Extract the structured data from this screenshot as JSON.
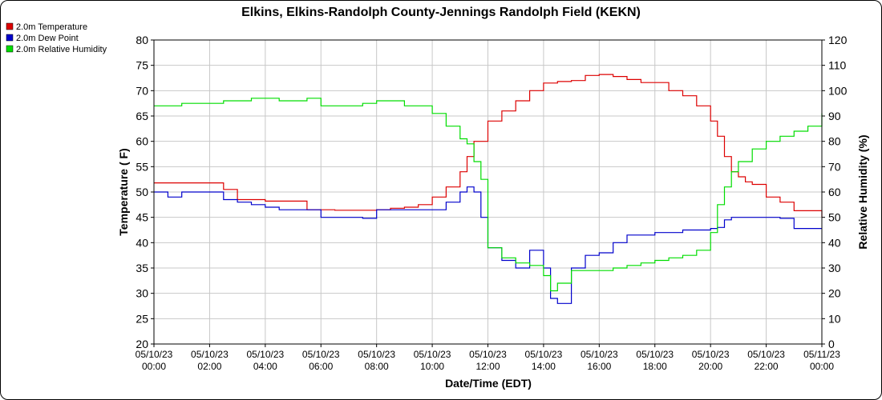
{
  "chart_data": {
    "type": "line",
    "title": "Elkins, Elkins-Randolph County-Jennings Randolph Field (KEKN)",
    "xlabel": "Date/Time (EDT)",
    "ylabel_left": "Temperature ( F)",
    "ylabel_right": "Relative Humidity (%)",
    "ylim_left": [
      20,
      80
    ],
    "ylim_right": [
      0,
      120
    ],
    "xlim_hours": [
      0,
      24
    ],
    "grid": true,
    "legend_position": "top-left",
    "y_ticks_left": [
      "20",
      "25",
      "30",
      "35",
      "40",
      "45",
      "50",
      "55",
      "60",
      "65",
      "70",
      "75",
      "80"
    ],
    "y_ticks_right": [
      "0",
      "10",
      "20",
      "30",
      "40",
      "50",
      "60",
      "70",
      "80",
      "90",
      "100",
      "110",
      "120"
    ],
    "x_ticks": [
      {
        "date": "05/10/23",
        "time": "00:00"
      },
      {
        "date": "05/10/23",
        "time": "02:00"
      },
      {
        "date": "05/10/23",
        "time": "04:00"
      },
      {
        "date": "05/10/23",
        "time": "06:00"
      },
      {
        "date": "05/10/23",
        "time": "08:00"
      },
      {
        "date": "05/10/23",
        "time": "10:00"
      },
      {
        "date": "05/10/23",
        "time": "12:00"
      },
      {
        "date": "05/10/23",
        "time": "14:00"
      },
      {
        "date": "05/10/23",
        "time": "16:00"
      },
      {
        "date": "05/10/23",
        "time": "18:00"
      },
      {
        "date": "05/10/23",
        "time": "20:00"
      },
      {
        "date": "05/10/23",
        "time": "22:00"
      },
      {
        "date": "05/11/23",
        "time": "00:00"
      }
    ],
    "series": [
      {
        "name": "2.0m Temperature",
        "color": "#dd0000",
        "axis": "left",
        "x": [
          0,
          0.5,
          1,
          1.5,
          2,
          2.5,
          3,
          3.5,
          4,
          4.5,
          5,
          5.5,
          6,
          6.5,
          7,
          7.5,
          8,
          8.5,
          9,
          9.5,
          10,
          10.5,
          11,
          11.25,
          11.5,
          12,
          12.5,
          13,
          13.5,
          14,
          14.5,
          15,
          15.5,
          16,
          16.5,
          17,
          17.5,
          18,
          18.5,
          19,
          19.5,
          20,
          20.25,
          20.5,
          20.75,
          21,
          21.25,
          21.5,
          22,
          22.5,
          23,
          23.5,
          24
        ],
        "y": [
          51.8,
          51.8,
          51.8,
          51.8,
          51.8,
          50.5,
          48.5,
          48.5,
          48.2,
          48.2,
          48.2,
          46.5,
          46.5,
          46.4,
          46.4,
          46.4,
          46.5,
          46.8,
          47,
          47.5,
          49,
          51,
          54,
          57,
          60,
          64,
          66,
          68,
          70,
          71.5,
          71.8,
          72,
          73,
          73.2,
          72.8,
          72.2,
          71.6,
          71.6,
          70,
          69,
          67,
          64,
          61,
          57,
          54,
          53,
          52,
          51.5,
          49,
          48,
          46.3,
          46.3,
          45
        ]
      },
      {
        "name": "2.0m Dew Point",
        "color": "#0000cc",
        "axis": "left",
        "x": [
          0,
          0.5,
          1,
          1.5,
          2,
          2.5,
          3,
          3.5,
          4,
          4.5,
          5,
          5.5,
          6,
          6.5,
          7,
          7.5,
          8,
          8.5,
          9,
          9.5,
          10,
          10.5,
          11,
          11.25,
          11.5,
          11.75,
          12,
          12.5,
          13,
          13.5,
          14,
          14.25,
          14.5,
          15,
          15.5,
          16,
          16.5,
          17,
          17.5,
          18,
          18.5,
          19,
          19.5,
          20,
          20.25,
          20.5,
          20.75,
          21,
          21.5,
          22,
          22.5,
          23,
          23.5,
          24
        ],
        "y": [
          50,
          49,
          50,
          50,
          50,
          48.5,
          48,
          47.5,
          47,
          46.5,
          46.5,
          46.5,
          45,
          45,
          45,
          44.8,
          46.5,
          46.5,
          46.5,
          46.5,
          46.5,
          48,
          50,
          51,
          50,
          45,
          39,
          36.5,
          35,
          38.5,
          35,
          29,
          28,
          35,
          37.5,
          38,
          40,
          41.5,
          41.5,
          42,
          42,
          42.5,
          42.5,
          42.8,
          43,
          44.5,
          45,
          45,
          45,
          45,
          44.8,
          42.8,
          42.8,
          42.8
        ]
      },
      {
        "name": "2.0m Relative Humidity",
        "color": "#00dd00",
        "axis": "right",
        "x": [
          0,
          0.5,
          1,
          1.5,
          2,
          2.5,
          3,
          3.5,
          4,
          4.5,
          5,
          5.5,
          6,
          6.5,
          7,
          7.5,
          8,
          8.5,
          9,
          9.5,
          10,
          10.5,
          11,
          11.25,
          11.5,
          11.75,
          12,
          12.5,
          13,
          13.5,
          14,
          14.25,
          14.5,
          15,
          15.5,
          16,
          16.5,
          17,
          17.5,
          18,
          18.5,
          19,
          19.5,
          20,
          20.25,
          20.5,
          20.75,
          21,
          21.5,
          22,
          22.5,
          23,
          23.5,
          24
        ],
        "y": [
          94,
          94,
          95,
          95,
          95,
          96,
          96,
          97,
          97,
          96,
          96,
          97,
          94,
          94,
          94,
          95,
          96,
          96,
          94,
          94,
          91,
          86,
          81,
          79,
          72,
          65,
          38,
          34,
          32,
          31,
          27,
          21,
          24,
          29,
          29,
          29,
          30,
          31,
          32,
          33,
          34,
          35,
          37,
          44,
          55,
          62,
          68,
          72,
          77,
          80,
          82,
          84,
          86,
          91
        ]
      }
    ]
  }
}
